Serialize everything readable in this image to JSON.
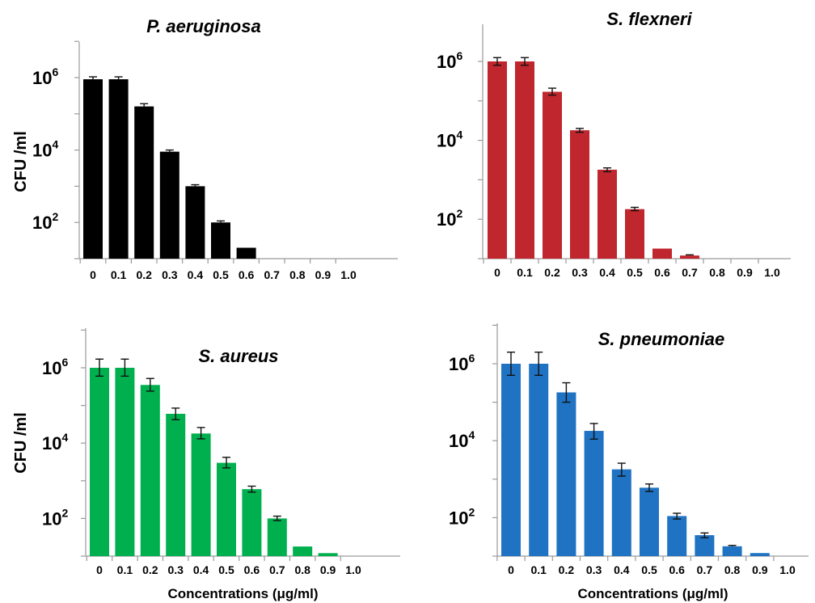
{
  "chart_data": [
    {
      "type": "bar",
      "title": "P. aeruginosa",
      "ylabel": "CFU /ml",
      "xlabel": "",
      "yscale": "log",
      "ylim": [
        10,
        100000000
      ],
      "ytick_values": [
        100,
        10000,
        1000000
      ],
      "ytick_labels": [
        {
          "base": "10",
          "exp": "2"
        },
        {
          "base": "10",
          "exp": "4"
        },
        {
          "base": "10",
          "exp": "6"
        }
      ],
      "categories": [
        "0",
        "0.1",
        "0.2",
        "0.3",
        "0.4",
        "0.5",
        "0.6",
        "0.7",
        "0.8",
        "0.9",
        "1.0"
      ],
      "values": [
        900000,
        900000,
        160000,
        9000,
        1000,
        100,
        20,
        null,
        null,
        null,
        null
      ],
      "error_upper": [
        1050000,
        1050000,
        190000,
        10000,
        1100,
        110,
        null,
        null,
        null,
        null,
        null
      ],
      "color": "#000000"
    },
    {
      "type": "bar",
      "title": "S. flexneri",
      "ylabel": "",
      "xlabel": "",
      "yscale": "log",
      "ylim": [
        10,
        100000000
      ],
      "ytick_values": [
        100,
        10000,
        1000000
      ],
      "ytick_labels": [
        {
          "base": "10",
          "exp": "2"
        },
        {
          "base": "10",
          "exp": "4"
        },
        {
          "base": "10",
          "exp": "6"
        }
      ],
      "categories": [
        "0",
        "0.1",
        "0.2",
        "0.3",
        "0.4",
        "0.5",
        "0.6",
        "0.7",
        "0.8",
        "0.9",
        "1.0"
      ],
      "values": [
        1000000,
        1000000,
        170000,
        18000,
        1800,
        180,
        18,
        12,
        null,
        null,
        null
      ],
      "error_upper": [
        1250000,
        1250000,
        210000,
        20000,
        2000,
        200,
        null,
        12.5,
        null,
        null,
        null
      ],
      "error_lower": [
        800000,
        800000,
        140000,
        16000,
        1600,
        165,
        null,
        null,
        null,
        null,
        null
      ],
      "color": "#c0262d"
    },
    {
      "type": "bar",
      "title": "S. aureus",
      "ylabel": "CFU /ml",
      "xlabel": "Concentrations (μg/ml)",
      "yscale": "log",
      "ylim": [
        10,
        100000000
      ],
      "ytick_values": [
        100,
        10000,
        1000000
      ],
      "ytick_labels": [
        {
          "base": "10",
          "exp": "2"
        },
        {
          "base": "10",
          "exp": "4"
        },
        {
          "base": "10",
          "exp": "6"
        }
      ],
      "categories": [
        "0",
        "0.1",
        "0.2",
        "0.3",
        "0.4",
        "0.5",
        "0.6",
        "0.7",
        "0.8",
        "0.9",
        "1.0"
      ],
      "values": [
        1000000,
        1000000,
        350000,
        60000,
        18000,
        3000,
        600,
        100,
        18,
        12,
        null
      ],
      "error_upper": [
        1700000,
        1700000,
        520000,
        85000,
        26000,
        4200,
        720,
        115,
        null,
        null,
        null
      ],
      "error_lower": [
        600000,
        600000,
        240000,
        42000,
        13000,
        2200,
        500,
        88,
        null,
        null,
        null
      ],
      "color": "#00b04f"
    },
    {
      "type": "bar",
      "title": "S. pneumoniae",
      "ylabel": "",
      "xlabel": "Concentrations (μg/ml)",
      "yscale": "log",
      "ylim": [
        10,
        100000000
      ],
      "ytick_values": [
        100,
        10000,
        1000000
      ],
      "ytick_labels": [
        {
          "base": "10",
          "exp": "2"
        },
        {
          "base": "10",
          "exp": "4"
        },
        {
          "base": "10",
          "exp": "6"
        }
      ],
      "categories": [
        "0",
        "0.1",
        "0.2",
        "0.3",
        "0.4",
        "0.5",
        "0.6",
        "0.7",
        "0.8",
        "0.9",
        "1.0"
      ],
      "values": [
        1000000,
        1000000,
        180000,
        18000,
        1800,
        600,
        110,
        35,
        18,
        12,
        null
      ],
      "error_upper": [
        2000000,
        2000000,
        320000,
        28000,
        2600,
        750,
        130,
        40,
        19,
        null,
        null
      ],
      "error_lower": [
        500000,
        500000,
        100000,
        11000,
        1200,
        480,
        92,
        30,
        null,
        null,
        null
      ],
      "color": "#1f73c2"
    }
  ]
}
